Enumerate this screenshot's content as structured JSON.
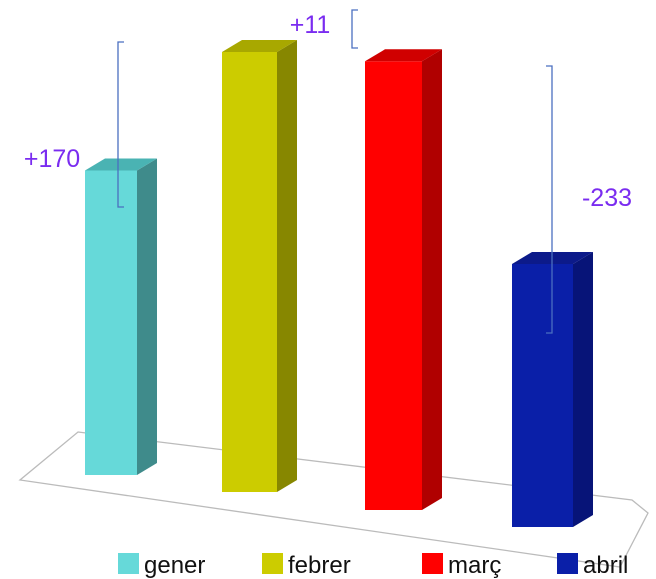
{
  "chart_data": {
    "type": "bar",
    "style": "3d",
    "categories": [
      "gener",
      "febrer",
      "març",
      "abril"
    ],
    "values": [
      382,
      552,
      563,
      330
    ],
    "colors": [
      "#66d9d9",
      "#cccc00",
      "#ff0000",
      "#0a1fa8"
    ],
    "side_colors": [
      "#3f8b8b",
      "#878700",
      "#b00000",
      "#071478"
    ],
    "top_colors": [
      "#4ab3b3",
      "#a8a800",
      "#d00000",
      "#0c1a8a"
    ],
    "annotations": [
      {
        "text": "+170",
        "from": "gener",
        "to": "febrer"
      },
      {
        "text": "+11",
        "from": "febrer",
        "to": "març"
      },
      {
        "text": "-233",
        "from": "març",
        "to": "abril"
      }
    ],
    "legend": {
      "position": "bottom",
      "entries": [
        "gener",
        "febrer",
        "març",
        "abril"
      ]
    },
    "annotation_color": "#7a2cf0",
    "bracket_color": "#4a6fc0",
    "grid": false,
    "axes_visible": false
  }
}
